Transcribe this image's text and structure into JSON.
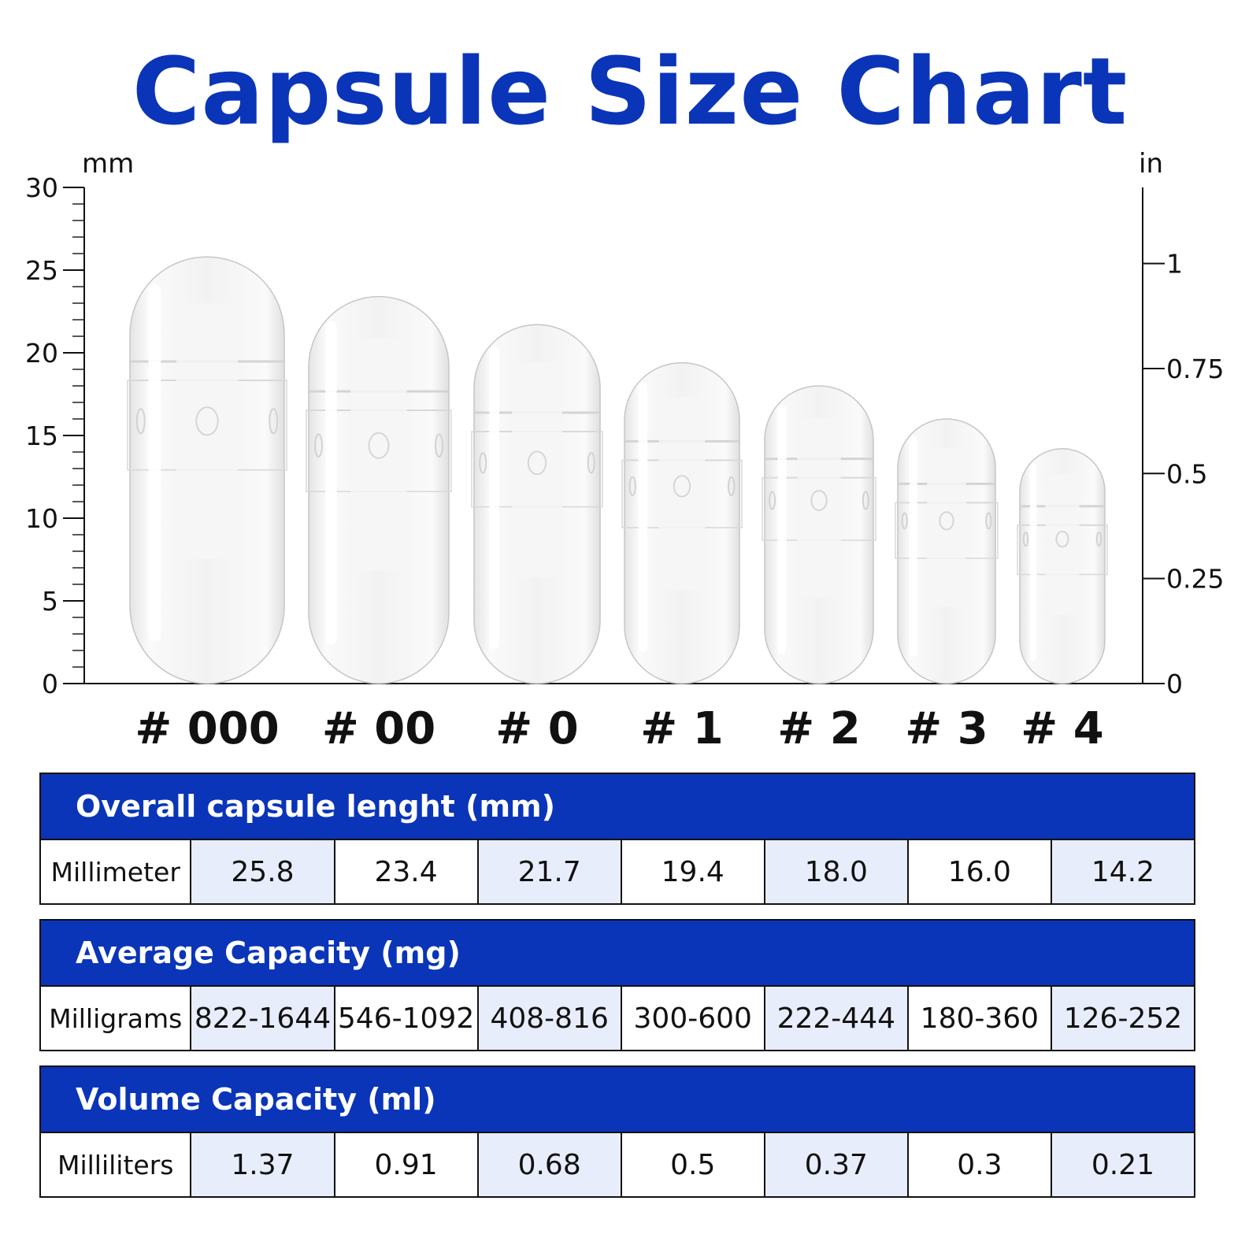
{
  "title": "Capsule Size Chart",
  "chart_data": {
    "type": "bar",
    "categories": [
      "# 000",
      "# 00",
      "# 0",
      "# 1",
      "# 2",
      "# 3",
      "# 4"
    ],
    "values": [
      25.8,
      23.4,
      21.7,
      19.4,
      18.0,
      16.0,
      14.2
    ],
    "left_axis": {
      "unit": "mm",
      "range": [
        0,
        30
      ],
      "ticks": [
        "0",
        "5",
        "10",
        "15",
        "20",
        "25",
        "30"
      ]
    },
    "right_axis": {
      "unit": "in",
      "ticks": [
        {
          "label": "0",
          "value": 0
        },
        {
          "label": "0.25",
          "value": 0.25
        },
        {
          "label": "0.5",
          "value": 0.5
        },
        {
          "label": "0.75",
          "value": 0.75
        },
        {
          "label": "1",
          "value": 1
        }
      ]
    },
    "grid": false
  },
  "tables": [
    {
      "header": "Overall capsule lenght (mm)",
      "row_label": "Millimeter",
      "cells": [
        "25.8",
        "23.4",
        "21.7",
        "19.4",
        "18.0",
        "16.0",
        "14.2"
      ]
    },
    {
      "header": "Average Capacity (mg)",
      "row_label": "Milligrams",
      "cells": [
        "822-1644",
        "546-1092",
        "408-816",
        "300-600",
        "222-444",
        "180-360",
        "126-252"
      ]
    },
    {
      "header": "Volume Capacity (ml)",
      "row_label": "Milliliters",
      "cells": [
        "1.37",
        "0.91",
        "0.68",
        "0.5",
        "0.37",
        "0.3",
        "0.21"
      ]
    }
  ],
  "colors": {
    "accent": "#0a35b8",
    "cell_shade": "#e8edfb"
  }
}
